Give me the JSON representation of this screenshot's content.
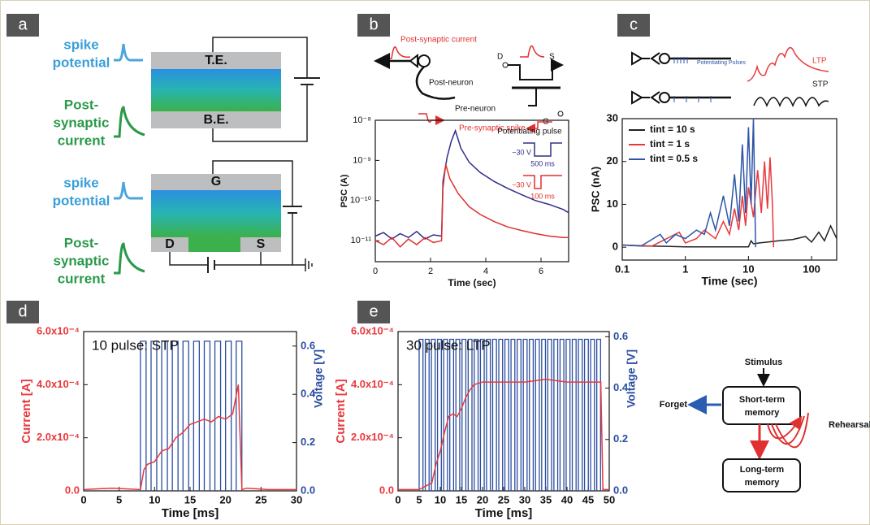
{
  "panel_labels": [
    "a",
    "b",
    "c",
    "d",
    "e"
  ],
  "panel_a": {
    "top": {
      "spike": [
        "spike",
        "potential"
      ],
      "current": [
        "Post-",
        "synaptic",
        "current"
      ],
      "top_electrode": "T.E.",
      "bottom_electrode": "B.E."
    },
    "bottom": {
      "spike": [
        "spike",
        "potential"
      ],
      "current": [
        "Post-",
        "synaptic",
        "current"
      ],
      "gate": "G",
      "drain": "D",
      "source": "S"
    }
  },
  "panel_b_diagram": {
    "post_current": "Post-synaptic current",
    "post_neuron": "Post-neuron",
    "pre_neuron": "Pre-neuron",
    "pre_spike": "Pre-synaptic spike",
    "drain": "D",
    "source": "S",
    "gate": "G"
  },
  "panel_c_diagram": {
    "pulses": "Potentiating Pulses",
    "ltp": "LTP",
    "stp": "STP"
  },
  "memory_model": {
    "stimulus": "Stimulus",
    "short_term": [
      "Short-term",
      "memory"
    ],
    "forget": "Forget",
    "rehearsal": "Rehearsal",
    "long_term": [
      "Long-term",
      "memory"
    ]
  },
  "chart_data": [
    {
      "type": "line",
      "y_label": "PSC (A)",
      "x_label": "Time (sec)",
      "xlim": [
        0,
        7
      ],
      "xticks": [
        0,
        2,
        4,
        6
      ],
      "ylim": [
        3e-12,
        1e-08
      ],
      "yscale": "log",
      "yticks": [
        {
          "value": 1e-11,
          "label": "10⁻¹¹"
        },
        {
          "value": 1e-10,
          "label": "10⁻¹⁰"
        },
        {
          "value": 1e-09,
          "label": "10⁻⁹"
        },
        {
          "value": 1e-08,
          "label": "10⁻⁸"
        }
      ],
      "inset": {
        "title": "Potentiating pulse",
        "pulses": [
          {
            "voltage": "−30 V",
            "duration": "500 ms",
            "color": "#2e2e8a"
          },
          {
            "voltage": "−30 V",
            "duration": "100 ms",
            "color": "#e03030"
          }
        ]
      },
      "series": [
        {
          "color": "#2e2e8a",
          "x": [
            0,
            0.3,
            0.6,
            0.9,
            1.2,
            1.5,
            1.8,
            2.1,
            2.4,
            2.45,
            2.6,
            2.75,
            2.9,
            3.1,
            3.4,
            3.8,
            4.3,
            4.8,
            5.3,
            5.8,
            6.3,
            6.8,
            7
          ],
          "values": [
            1.3e-11,
            1.6e-11,
            1.1e-11,
            1.5e-11,
            1.2e-11,
            1.7e-11,
            1.1e-11,
            1.4e-11,
            1.3e-11,
            3e-10,
            1.2e-09,
            3e-09,
            5.5e-09,
            2e-09,
            9e-10,
            5e-10,
            3e-10,
            2e-10,
            1.4e-10,
            1e-10,
            8e-11,
            6e-11,
            5e-11
          ]
        },
        {
          "color": "#e03030",
          "x": [
            0,
            0.3,
            0.6,
            0.9,
            1.2,
            1.5,
            1.8,
            2.1,
            2.4,
            2.45,
            2.55,
            2.7,
            3,
            3.4,
            3.8,
            4.3,
            4.8,
            5.3,
            5.8,
            6.3,
            6.8,
            7
          ],
          "values": [
            1e-11,
            8e-12,
            1.2e-11,
            7e-12,
            1.1e-11,
            8e-12,
            1.2e-11,
            9e-12,
            1e-11,
            2e-10,
            8e-10,
            3.5e-10,
            1.5e-10,
            7e-11,
            4.5e-11,
            3e-11,
            2.2e-11,
            1.8e-11,
            1.5e-11,
            1.3e-11,
            1.2e-11,
            1.2e-11
          ]
        }
      ]
    },
    {
      "type": "line",
      "y_label": "PSC (nA)",
      "x_label": "Time (sec)",
      "xlim": [
        0.1,
        250
      ],
      "xscale": "log",
      "xticks": [
        0.1,
        1,
        10,
        100
      ],
      "ylim": [
        -3,
        30
      ],
      "yticks": [
        0,
        10,
        20,
        30
      ],
      "legend": "upper left",
      "series": [
        {
          "name": "tint = 10 s",
          "color": "#222222",
          "x": [
            0.1,
            0.2,
            0.5,
            1,
            2,
            5,
            10,
            11,
            12,
            15,
            20,
            30,
            50,
            80,
            100,
            130,
            160,
            200,
            250
          ],
          "values": [
            0.5,
            0.3,
            0.2,
            0.1,
            0.1,
            0.1,
            0.1,
            1.5,
            0.8,
            1,
            1.2,
            1.5,
            1.8,
            2.5,
            1.2,
            3.5,
            1.5,
            5,
            2
          ]
        },
        {
          "name": "tint = 1 s",
          "color": "#e8383d",
          "x": [
            0.1,
            0.3,
            0.8,
            1,
            1.5,
            2,
            3,
            4,
            5,
            6,
            7,
            8,
            9,
            10,
            12,
            14,
            16,
            18,
            20,
            22,
            24,
            25
          ],
          "values": [
            0.5,
            0.3,
            3.5,
            1,
            2,
            4,
            2,
            6,
            3,
            9,
            4,
            12,
            5,
            14,
            7,
            18,
            8,
            20,
            9,
            21,
            10,
            0
          ]
        },
        {
          "name": "tint = 0.5 s",
          "color": "#2d55a6",
          "x": [
            0.1,
            0.2,
            0.4,
            0.5,
            0.7,
            1,
            1.5,
            2,
            2.5,
            3,
            4,
            5,
            6,
            7,
            8,
            9,
            10,
            11,
            12,
            13
          ],
          "values": [
            0.5,
            0.3,
            3,
            1,
            3,
            2,
            4,
            3,
            8,
            4,
            12,
            5,
            17,
            6,
            24,
            8,
            28,
            10,
            30,
            0
          ]
        }
      ]
    },
    {
      "type": "line",
      "annotation": "10 pulse: STP",
      "y_label": "Current [A]",
      "y2_label": "Voltage [V]",
      "x_label": "Time [ms]",
      "xlim": [
        0,
        30
      ],
      "xticks": [
        0,
        5,
        10,
        15,
        20,
        25,
        30
      ],
      "ylim": [
        0,
        0.0006
      ],
      "yticks": [
        {
          "value": 0,
          "label": "0.0"
        },
        {
          "value": 0.0002,
          "label": "2.0x10⁻⁴"
        },
        {
          "value": 0.0004,
          "label": "4.0x10⁻⁴"
        },
        {
          "value": 0.0006,
          "label": "6.0x10⁻⁴"
        }
      ],
      "y2lim": [
        0,
        0.66
      ],
      "y2ticks": [
        {
          "value": 0,
          "label": "0.0"
        },
        0.2,
        0.4,
        0.6
      ],
      "series": [
        {
          "color": "#2b4ea0",
          "axis": "y2",
          "x_on": [
            8,
            9.5,
            11,
            12.5,
            14,
            15.5,
            17,
            18.5,
            20,
            21.5
          ],
          "x_off": [
            8.8,
            10.3,
            11.8,
            13.3,
            14.8,
            16.3,
            17.8,
            19.3,
            20.8,
            22.3
          ],
          "values": [
            0.62,
            0.62,
            0.62,
            0.62,
            0.62,
            0.62,
            0.62,
            0.62,
            0.62,
            0.62
          ]
        },
        {
          "color": "#e8383d",
          "x": [
            0,
            4,
            8,
            8.5,
            9,
            10,
            11,
            12,
            13,
            14,
            15,
            16,
            17,
            18,
            19,
            20,
            21,
            21.8,
            22.3,
            23,
            26,
            30
          ],
          "values": [
            5e-06,
            1e-05,
            5e-06,
            8e-05,
            0.0001,
            0.00011,
            0.00015,
            0.00016,
            0.0002,
            0.00022,
            0.00025,
            0.00026,
            0.00027,
            0.00026,
            0.00028,
            0.00027,
            0.00029,
            0.0004,
            5e-06,
            1e-05,
            5e-06,
            5e-06
          ]
        }
      ]
    },
    {
      "type": "line",
      "annotation": "30 pulse: LTP",
      "y_label": "Current [A]",
      "y2_label": "Voltage [V]",
      "x_label": "Time [ms]",
      "xlim": [
        0,
        50
      ],
      "xticks": [
        0,
        5,
        10,
        15,
        20,
        25,
        30,
        35,
        40,
        45,
        50
      ],
      "ylim": [
        0,
        0.0006
      ],
      "yticks": [
        {
          "value": 0,
          "label": "0.0"
        },
        {
          "value": 0.0002,
          "label": "2.0x10⁻⁴"
        },
        {
          "value": 0.0004,
          "label": "4.0x10⁻⁴"
        },
        {
          "value": 0.0006,
          "label": "6.0x10⁻⁴"
        }
      ],
      "y2lim": [
        0,
        0.62
      ],
      "y2ticks": [
        {
          "value": 0,
          "label": "0.0"
        },
        0.2,
        0.4,
        0.6
      ],
      "series": [
        {
          "color": "#2b4ea0",
          "axis": "y2",
          "x_on": [
            5.0,
            6.45,
            7.9,
            9.35,
            10.8,
            12.25,
            13.7,
            15.15,
            16.6,
            18.05,
            19.5,
            20.95,
            22.4,
            23.85,
            25.3,
            26.75,
            28.2,
            29.65,
            31.1,
            32.55,
            34.0,
            35.45,
            36.9,
            38.35,
            39.8,
            41.25,
            42.7,
            44.15,
            45.6,
            47.05
          ],
          "x_off": [
            5.9,
            7.35,
            8.8,
            10.25,
            11.7,
            13.15,
            14.6,
            16.05,
            17.5,
            18.95,
            20.4,
            21.85,
            23.3,
            24.75,
            26.2,
            27.65,
            29.1,
            30.55,
            32.0,
            33.45,
            34.9,
            36.35,
            37.8,
            39.25,
            40.7,
            42.15,
            43.6,
            45.05,
            46.5,
            47.95
          ],
          "values": [
            0.59,
            0.59,
            0.59,
            0.59,
            0.59,
            0.59,
            0.59,
            0.59,
            0.59,
            0.59,
            0.59,
            0.59,
            0.59,
            0.59,
            0.59,
            0.59,
            0.59,
            0.59,
            0.59,
            0.59,
            0.59,
            0.59,
            0.59,
            0.59,
            0.59,
            0.59,
            0.59,
            0.59,
            0.59,
            0.59
          ]
        },
        {
          "color": "#e8383d",
          "x": [
            0,
            5,
            8,
            9,
            10,
            11,
            12,
            13,
            14,
            15,
            16,
            17,
            18,
            20,
            25,
            30,
            35,
            40,
            45,
            48,
            48.5,
            50
          ],
          "values": [
            5e-06,
            5e-06,
            3e-05,
            0.0001,
            0.00015,
            0.00022,
            0.00028,
            0.00029,
            0.00028,
            0.00031,
            0.00035,
            0.00038,
            0.0004,
            0.00041,
            0.00041,
            0.00041,
            0.00042,
            0.00041,
            0.00041,
            0.00041,
            5e-06,
            5e-06
          ]
        }
      ]
    }
  ]
}
